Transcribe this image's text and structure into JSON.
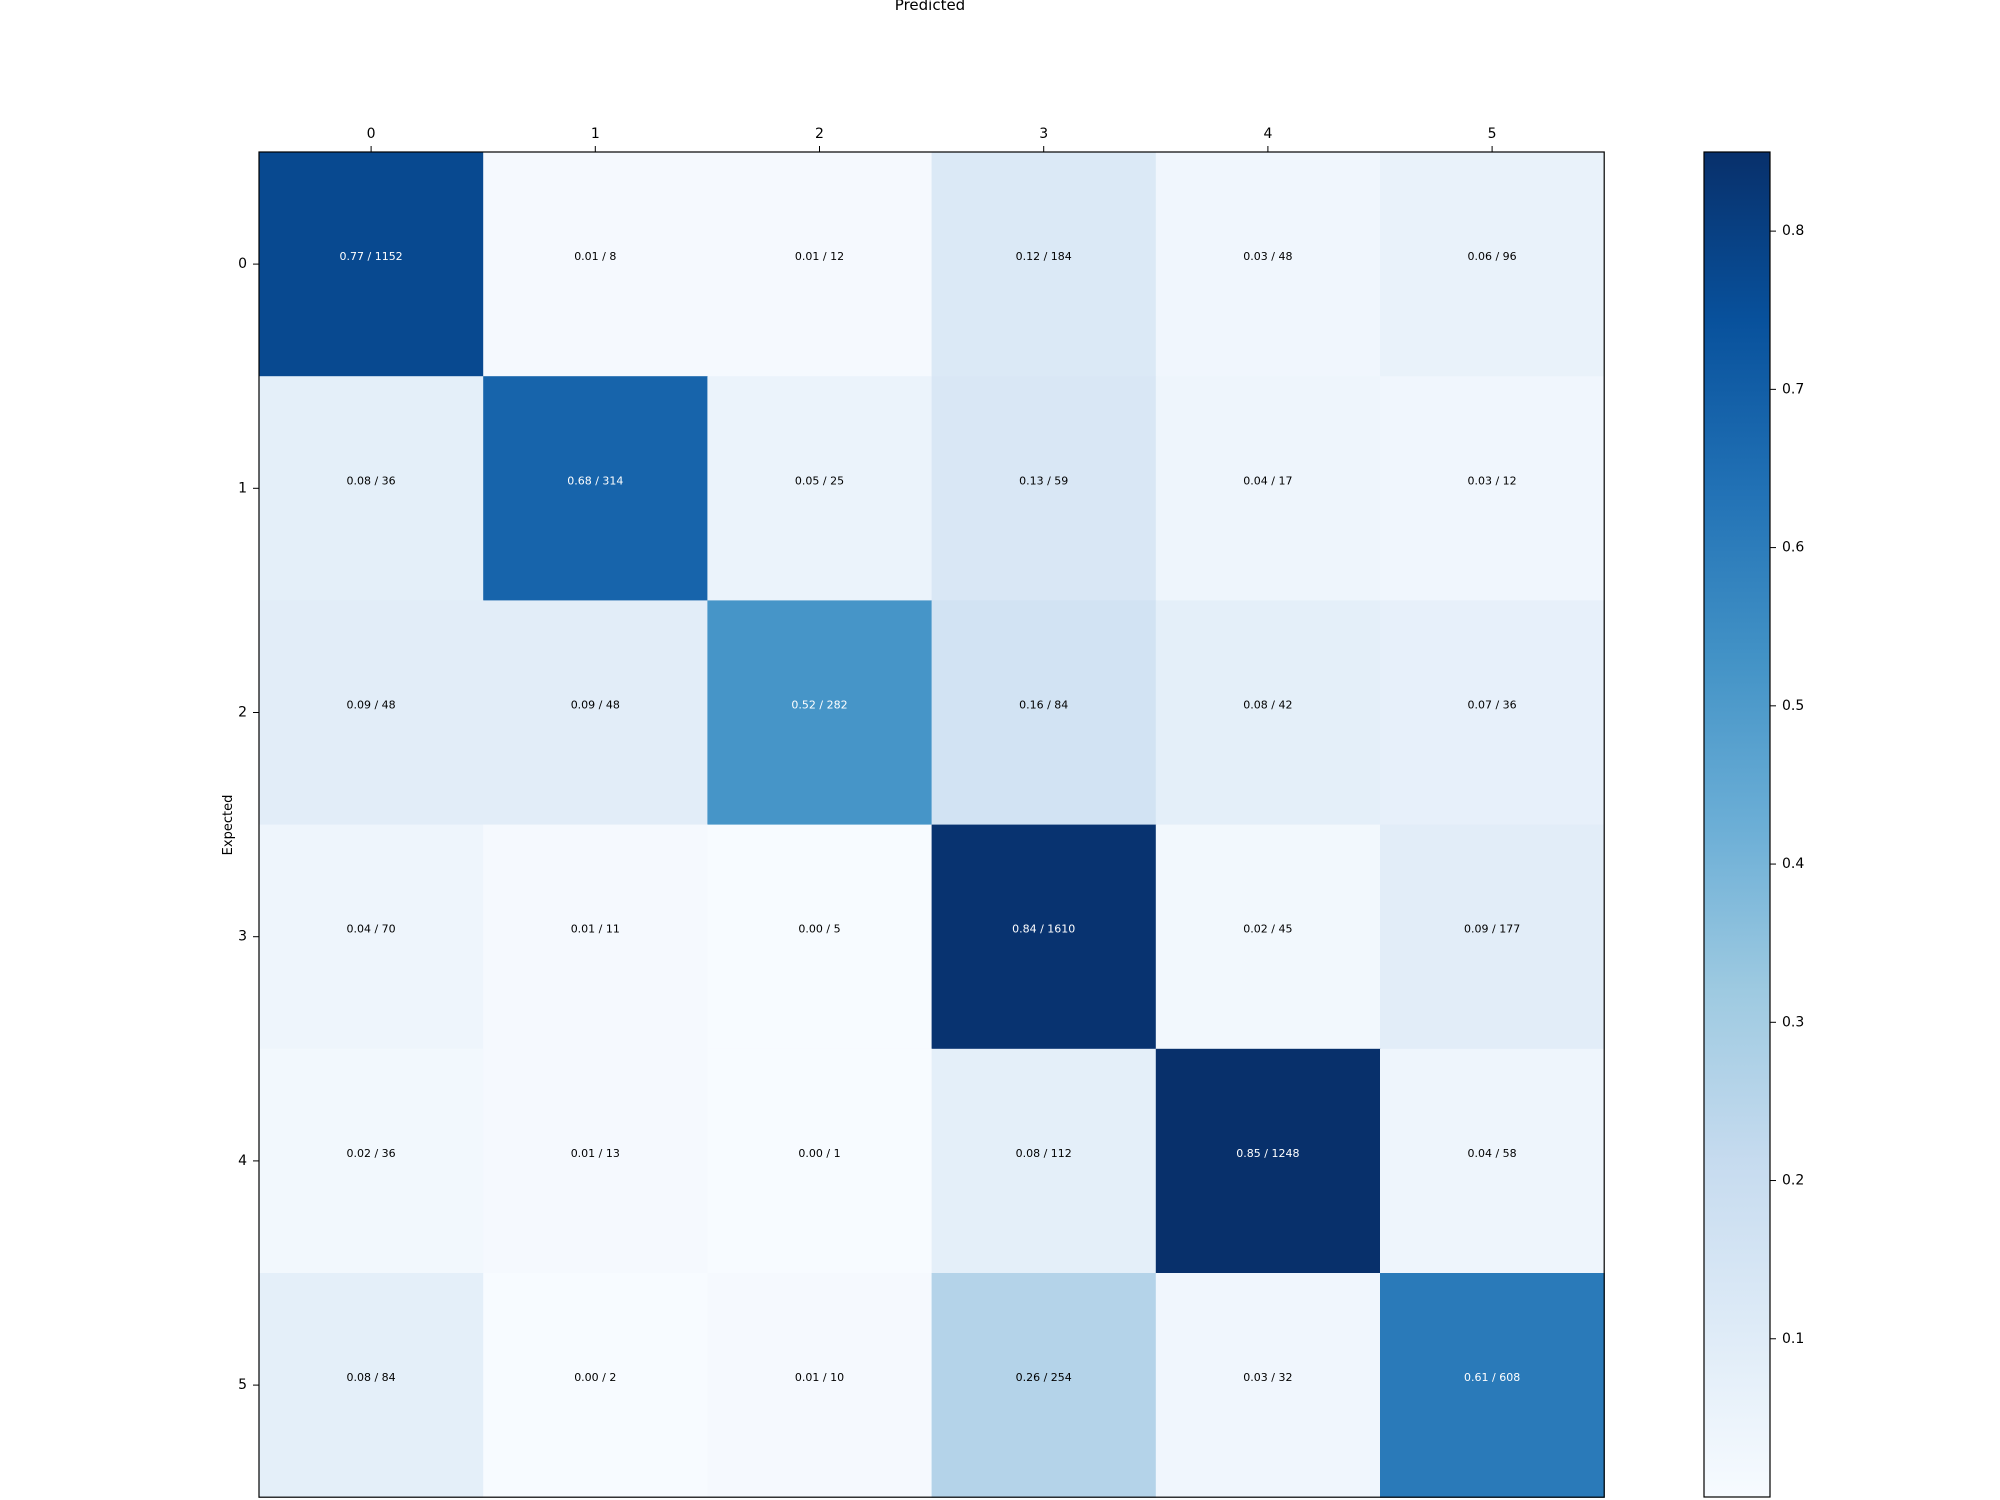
{
  "chart_data": {
    "type": "heatmap",
    "title": "Predicted",
    "xlabel": "Predicted",
    "ylabel": "Expected",
    "x_categories": [
      "0",
      "1",
      "2",
      "3",
      "4",
      "5"
    ],
    "y_categories": [
      "0",
      "1",
      "2",
      "3",
      "4",
      "5"
    ],
    "x_axis_position": "top",
    "grid": false,
    "colormap": "Blues",
    "colorbar": {
      "position": "right",
      "range": [
        0.0,
        0.85
      ],
      "ticks": [
        0.1,
        0.2,
        0.3,
        0.4,
        0.5,
        0.6,
        0.7,
        0.8
      ],
      "tick_labels": [
        "0.1",
        "0.2",
        "0.3",
        "0.4",
        "0.5",
        "0.6",
        "0.7",
        "0.8"
      ]
    },
    "values": [
      [
        0.77,
        0.01,
        0.01,
        0.12,
        0.03,
        0.06
      ],
      [
        0.08,
        0.68,
        0.05,
        0.13,
        0.04,
        0.03
      ],
      [
        0.09,
        0.09,
        0.52,
        0.16,
        0.08,
        0.07
      ],
      [
        0.04,
        0.01,
        0.0,
        0.84,
        0.02,
        0.09
      ],
      [
        0.02,
        0.01,
        0.0,
        0.08,
        0.85,
        0.04
      ],
      [
        0.08,
        0.0,
        0.01,
        0.26,
        0.03,
        0.61
      ]
    ],
    "counts": [
      [
        1152,
        8,
        12,
        184,
        48,
        96
      ],
      [
        36,
        314,
        25,
        59,
        17,
        12
      ],
      [
        48,
        48,
        282,
        84,
        42,
        36
      ],
      [
        70,
        11,
        5,
        1610,
        45,
        177
      ],
      [
        36,
        13,
        1,
        112,
        1248,
        58
      ],
      [
        84,
        2,
        10,
        254,
        32,
        608
      ]
    ],
    "cell_labels": [
      [
        "0.77 / 1152",
        "0.01 / 8",
        "0.01 / 12",
        "0.12 / 184",
        "0.03 / 48",
        "0.06 / 96"
      ],
      [
        "0.08 / 36",
        "0.68 / 314",
        "0.05 / 25",
        "0.13 / 59",
        "0.04 / 17",
        "0.03 / 12"
      ],
      [
        "0.09 / 48",
        "0.09 / 48",
        "0.52 / 282",
        "0.16 / 84",
        "0.08 / 42",
        "0.07 / 36"
      ],
      [
        "0.04 / 70",
        "0.01 / 11",
        "0.00 / 5",
        "0.84 / 1610",
        "0.02 / 45",
        "0.09 / 177"
      ],
      [
        "0.02 / 36",
        "0.01 / 13",
        "0.00 / 1",
        "0.08 / 112",
        "0.85 / 1248",
        "0.04 / 58"
      ],
      [
        "0.08 / 84",
        "0.00 / 2",
        "0.01 / 10",
        "0.26 / 254",
        "0.03 / 32",
        "0.61 / 608"
      ]
    ]
  }
}
